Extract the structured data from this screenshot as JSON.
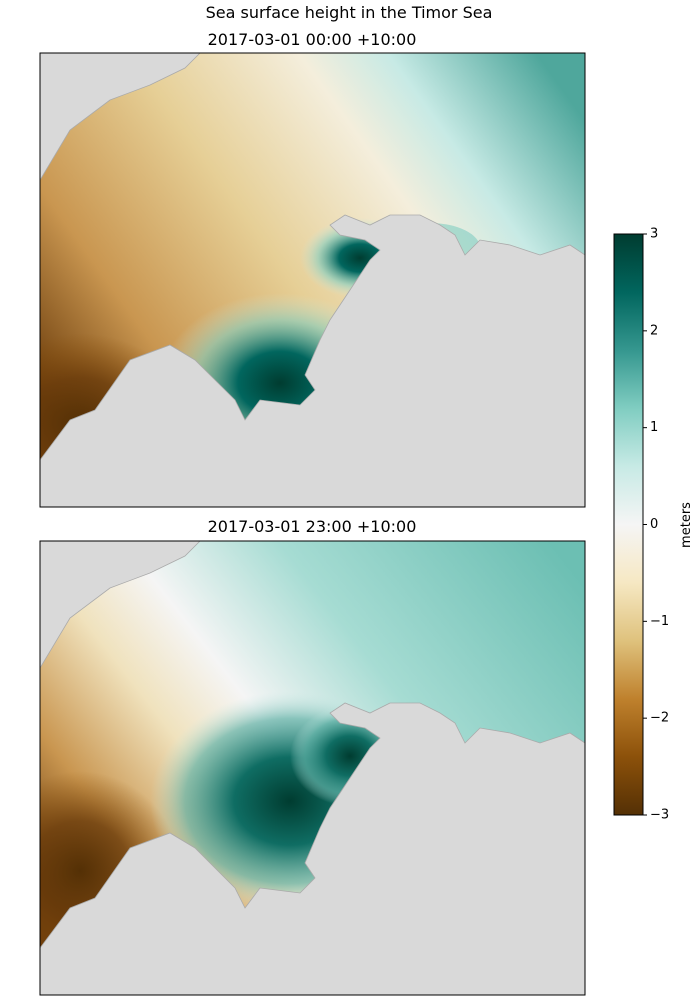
{
  "title": "Sea surface height in the Timor Sea",
  "panels": [
    {
      "title": "2017-03-01 00:00 +10:00"
    },
    {
      "title": "2017-03-01 23:00 +10:00"
    }
  ],
  "colorbar": {
    "label": "meters",
    "lim": [
      -3,
      3
    ],
    "ticks": [
      {
        "value": -3,
        "label": "−3"
      },
      {
        "value": -2,
        "label": "−2"
      },
      {
        "value": -1,
        "label": "−1"
      },
      0,
      1,
      2,
      3
    ],
    "colors": [
      "#543005",
      "#8c510a",
      "#bf812d",
      "#dfc27d",
      "#f6e8c3",
      "#f5f5f5",
      "#c7eae5",
      "#80cdc1",
      "#35978f",
      "#01665e",
      "#003c30"
    ]
  },
  "land_color": "#d9d9d9"
}
